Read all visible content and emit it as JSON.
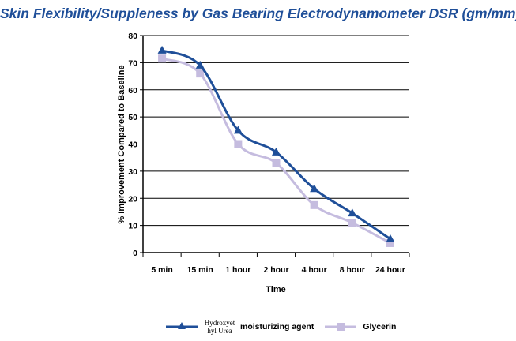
{
  "chart_data": {
    "type": "line",
    "title": "Skin Flexibility/Suppleness by Gas Bearing Electrodynamometer DSR (gm/mm)",
    "xlabel": "Time",
    "ylabel": "% Improvement Compared to Baseline",
    "categories": [
      "5 min",
      "15 min",
      "1 hour",
      "2 hour",
      "4 hour",
      "8 hour",
      "24 hour"
    ],
    "ylim": [
      0,
      80
    ],
    "yticks": [
      0,
      10,
      20,
      30,
      40,
      50,
      60,
      70,
      80
    ],
    "grid": true,
    "legend_position": "bottom",
    "series": [
      {
        "name": "Hydroxyethyl Urea",
        "color": "#1f4f99",
        "marker": "triangle",
        "values": [
          74.5,
          69,
          45,
          37,
          23.5,
          14.5,
          5
        ]
      },
      {
        "name": "Glycerin",
        "color": "#c5bcdf",
        "marker": "square",
        "values": [
          71.5,
          66,
          40,
          33,
          17.5,
          11,
          3.5
        ]
      }
    ]
  },
  "legend": {
    "item1_name": "Hydroxyet hyl Urea",
    "item1_extra": "moisturizing agent",
    "item2_name": "Glycerin"
  }
}
